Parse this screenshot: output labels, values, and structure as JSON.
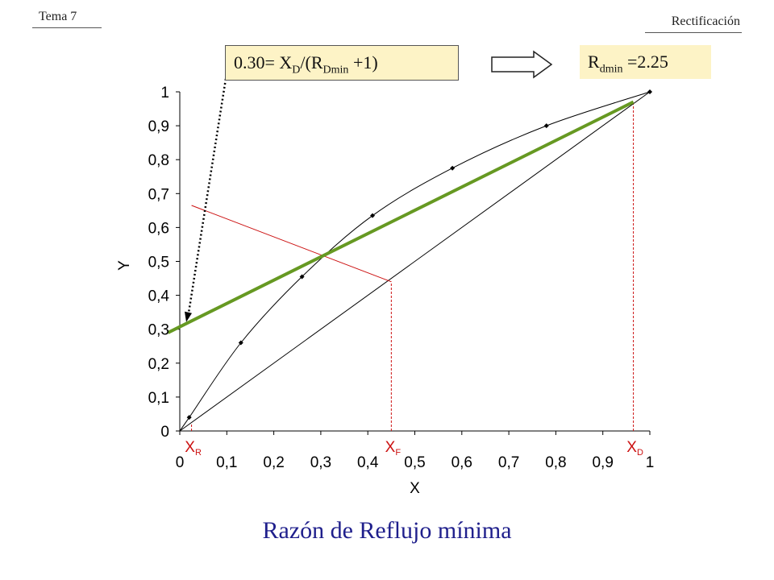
{
  "header": {
    "left": "Tema 7",
    "right": "Rectificación"
  },
  "annotation": {
    "equation": {
      "lead": "0.30= X",
      "sub1": "D",
      "mid": "/(R",
      "sub2": "Dmin",
      "tail": " +1)"
    },
    "result": {
      "lead": "R",
      "sub": "dmin",
      "tail": " =2.25"
    },
    "box_color": "#fdf3c6",
    "arrow_icon": "right-arrow-icon"
  },
  "title": "Razón de Reflujo mínima",
  "chart_data": {
    "type": "line",
    "title": "Razón de Reflujo mínima",
    "xlabel": "X",
    "ylabel": "Y",
    "xlim": [
      0,
      1
    ],
    "ylim": [
      0,
      1
    ],
    "x_ticks": [
      "0",
      "0,1",
      "0,2",
      "0,3",
      "0,4",
      "0,5",
      "0,6",
      "0,7",
      "0,8",
      "0,9",
      "1"
    ],
    "y_ticks": [
      "0",
      "0,1",
      "0,2",
      "0,3",
      "0,4",
      "0,5",
      "0,6",
      "0,7",
      "0,8",
      "0,9",
      "1"
    ],
    "grid": false,
    "series": [
      {
        "role": "equilibrium",
        "color": "#000000",
        "curve": [
          [
            0,
            0
          ],
          [
            0.02,
            0.04
          ],
          [
            0.13,
            0.26
          ],
          [
            0.26,
            0.455
          ],
          [
            0.41,
            0.635
          ],
          [
            0.58,
            0.775
          ],
          [
            0.78,
            0.9
          ],
          [
            1,
            1
          ]
        ],
        "markers": [
          [
            0.02,
            0.04
          ],
          [
            0.13,
            0.26
          ],
          [
            0.26,
            0.455
          ],
          [
            0.41,
            0.635
          ],
          [
            0.58,
            0.775
          ],
          [
            0.78,
            0.9
          ],
          [
            1,
            1
          ]
        ]
      },
      {
        "role": "diagonal",
        "color": "#000000",
        "points": [
          [
            0,
            0
          ],
          [
            1,
            1
          ]
        ]
      },
      {
        "role": "q-line",
        "color": "#cc1111",
        "points": [
          [
            0.45,
            0.44
          ],
          [
            0.025,
            0.665
          ]
        ]
      },
      {
        "role": "operating-line",
        "color": "#669922",
        "points": [
          [
            -0.025,
            0.29
          ],
          [
            0.965,
            0.97
          ]
        ]
      }
    ],
    "markers_x": [
      {
        "label": "X",
        "sub": "R",
        "x": 0.025
      },
      {
        "label": "X",
        "sub": "F",
        "x": 0.45
      },
      {
        "label": "X",
        "sub": "D",
        "x": 0.965
      }
    ],
    "marker_color": "#cc1111",
    "intercept": 0.3
  }
}
